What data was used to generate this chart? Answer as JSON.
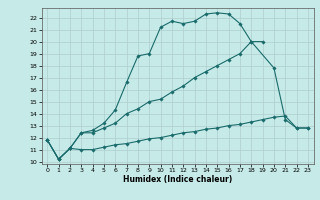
{
  "xlabel": "Humidex (Indice chaleur)",
  "xlim": [
    -0.5,
    23.5
  ],
  "ylim": [
    9.8,
    22.8
  ],
  "yticks": [
    10,
    11,
    12,
    13,
    14,
    15,
    16,
    17,
    18,
    19,
    20,
    21,
    22
  ],
  "xticks": [
    0,
    1,
    2,
    3,
    4,
    5,
    6,
    7,
    8,
    9,
    10,
    11,
    12,
    13,
    14,
    15,
    16,
    17,
    18,
    19,
    20,
    21,
    22,
    23
  ],
  "bg_color": "#c5eae8",
  "grid_color": "#b0cece",
  "line_color": "#1a6b6b",
  "line1_x": [
    0,
    1,
    2,
    3,
    4,
    5,
    6,
    7,
    8,
    9,
    10,
    11,
    12,
    13,
    14,
    15,
    16,
    17,
    18,
    19
  ],
  "line1_y": [
    11.8,
    10.2,
    11.1,
    12.4,
    12.6,
    13.2,
    14.3,
    16.6,
    18.8,
    19.0,
    21.2,
    21.7,
    21.5,
    21.7,
    22.3,
    22.4,
    22.3,
    21.5,
    20.0,
    20.0
  ],
  "line2_x": [
    0,
    1,
    2,
    3,
    4,
    5,
    6,
    7,
    8,
    9,
    10,
    11,
    12,
    13,
    14,
    15,
    16,
    17,
    18,
    20,
    21,
    22,
    23
  ],
  "line2_y": [
    11.8,
    10.2,
    11.1,
    12.4,
    12.4,
    12.8,
    13.2,
    14.0,
    14.4,
    15.0,
    15.2,
    15.8,
    16.3,
    17.0,
    17.5,
    18.0,
    18.5,
    19.0,
    20.0,
    17.8,
    13.5,
    12.8,
    12.8
  ],
  "line3_x": [
    0,
    1,
    2,
    3,
    4,
    5,
    6,
    7,
    8,
    9,
    10,
    11,
    12,
    13,
    14,
    15,
    16,
    17,
    18,
    19,
    20,
    21,
    22,
    23
  ],
  "line3_y": [
    11.8,
    10.2,
    11.1,
    11.0,
    11.0,
    11.2,
    11.4,
    11.5,
    11.7,
    11.9,
    12.0,
    12.2,
    12.4,
    12.5,
    12.7,
    12.8,
    13.0,
    13.1,
    13.3,
    13.5,
    13.7,
    13.8,
    12.8,
    12.8
  ]
}
